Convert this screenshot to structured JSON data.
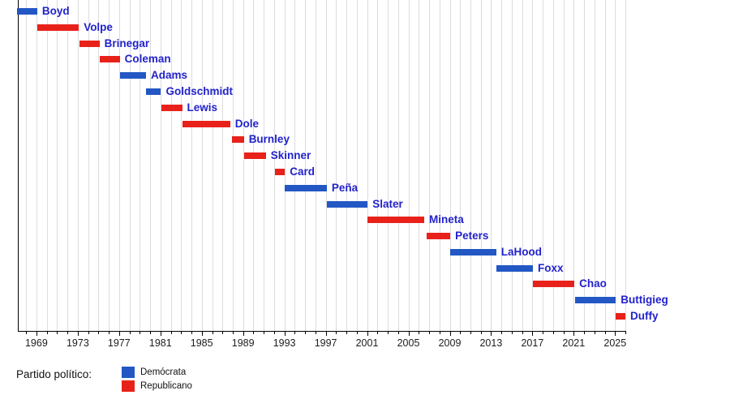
{
  "legend": {
    "title": "Partido político:",
    "items": [
      {
        "label": "Demócrata",
        "party": "Demócrata",
        "color": "#2257c4"
      },
      {
        "label": "Republicano",
        "party": "Republicano",
        "color": "#e8211a"
      }
    ]
  },
  "chart_data": {
    "type": "timeline",
    "title": "",
    "xlabel": "",
    "ylabel": "",
    "x_axis": {
      "min": 1967.2,
      "max": 2026.0,
      "tick_labels": [
        "1969",
        "1973",
        "1977",
        "1981",
        "1985",
        "1989",
        "1993",
        "1997",
        "2001",
        "2005",
        "2009",
        "2013",
        "2017",
        "2021",
        "2025"
      ],
      "major_tick_years": [
        1969,
        1973,
        1977,
        1981,
        1985,
        1989,
        1993,
        1997,
        2001,
        2005,
        2009,
        2013,
        2017,
        2021,
        2025
      ],
      "minor_tick_step": 1,
      "grid": "vertical-yearly"
    },
    "party_colors": {
      "Demócrata": "#2257c4",
      "Republicano": "#e8211a"
    },
    "label_color": "#2222cc",
    "bars": [
      {
        "name": "Boyd",
        "party": "Demócrata",
        "start": 1967.1,
        "end": 1969.08
      },
      {
        "name": "Volpe",
        "party": "Republicano",
        "start": 1969.08,
        "end": 1973.1
      },
      {
        "name": "Brinegar",
        "party": "Republicano",
        "start": 1973.13,
        "end": 1975.1
      },
      {
        "name": "Coleman",
        "party": "Republicano",
        "start": 1975.16,
        "end": 1977.06
      },
      {
        "name": "Adams",
        "party": "Demócrata",
        "start": 1977.06,
        "end": 1979.6
      },
      {
        "name": "Goldschmidt",
        "party": "Demócrata",
        "start": 1979.62,
        "end": 1981.06
      },
      {
        "name": "Lewis",
        "party": "Republicano",
        "start": 1981.06,
        "end": 1983.1
      },
      {
        "name": "Dole",
        "party": "Republicano",
        "start": 1983.1,
        "end": 1987.75
      },
      {
        "name": "Burnley",
        "party": "Republicano",
        "start": 1987.95,
        "end": 1989.08
      },
      {
        "name": "Skinner",
        "party": "Republicano",
        "start": 1989.08,
        "end": 1991.2
      },
      {
        "name": "Card",
        "party": "Republicano",
        "start": 1992.12,
        "end": 1993.05
      },
      {
        "name": "Peña",
        "party": "Demócrata",
        "start": 1993.06,
        "end": 1997.1
      },
      {
        "name": "Slater",
        "party": "Demócrata",
        "start": 1997.12,
        "end": 2001.05
      },
      {
        "name": "Mineta",
        "party": "Republicano",
        "start": 2001.06,
        "end": 2006.53
      },
      {
        "name": "Peters",
        "party": "Republicano",
        "start": 2006.77,
        "end": 2009.05
      },
      {
        "name": "LaHood",
        "party": "Demócrata",
        "start": 2009.06,
        "end": 2013.5
      },
      {
        "name": "Foxx",
        "party": "Demócrata",
        "start": 2013.52,
        "end": 2017.05
      },
      {
        "name": "Chao",
        "party": "Republicano",
        "start": 2017.08,
        "end": 2021.06
      },
      {
        "name": "Buttigieg",
        "party": "Demócrata",
        "start": 2021.09,
        "end": 2025.08
      },
      {
        "name": "Duffy",
        "party": "Republicano",
        "start": 2025.08,
        "end": 2026.0
      }
    ]
  }
}
